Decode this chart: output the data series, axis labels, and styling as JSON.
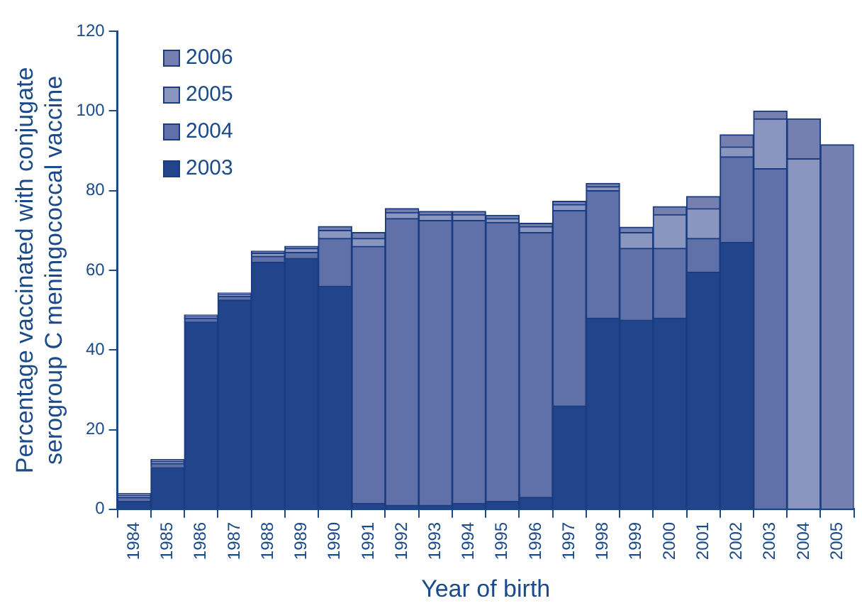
{
  "chart_data": {
    "type": "bar",
    "stacked": true,
    "xlabel": "Year of birth",
    "ylabel": "Percentage vaccinated with conjugate serogroup C meningococcal vaccine",
    "categories": [
      "1984",
      "1985",
      "1986",
      "1987",
      "1988",
      "1989",
      "1990",
      "1991",
      "1992",
      "1993",
      "1994",
      "1995",
      "1996",
      "1997",
      "1998",
      "1999",
      "2000",
      "2001",
      "2002",
      "2003",
      "2004",
      "2005"
    ],
    "series": [
      {
        "name": "2003",
        "color": "#22448a",
        "values": [
          2,
          10.5,
          47,
          52.5,
          62,
          63,
          56,
          1.5,
          1,
          1,
          1.5,
          2,
          3,
          26,
          48,
          47.5,
          48,
          59.5,
          67,
          null,
          null,
          null
        ]
      },
      {
        "name": "2004",
        "color": "#6070a8",
        "values": [
          1,
          1,
          1,
          1,
          1.5,
          1.5,
          12,
          64.5,
          72,
          71.5,
          71,
          70,
          66.5,
          49,
          32,
          18,
          17.5,
          8.5,
          21.5,
          85.5,
          null,
          null
        ]
      },
      {
        "name": "2005",
        "color": "#8a96c0",
        "values": [
          0.5,
          0.5,
          0.3,
          0.5,
          0.8,
          1,
          2,
          2,
          1.5,
          1.5,
          1.5,
          1,
          1.5,
          1.5,
          1,
          4,
          8.5,
          7.5,
          2.5,
          12.5,
          88,
          null
        ]
      },
      {
        "name": "2006",
        "color": "#7680b0",
        "values": [
          0.5,
          0.5,
          0.5,
          0.3,
          0.5,
          0.5,
          1,
          1.5,
          1,
          0.8,
          0.8,
          0.8,
          0.8,
          0.8,
          0.8,
          1.3,
          2,
          3,
          3,
          2,
          10,
          91.5
        ]
      }
    ],
    "ylim": [
      0,
      120
    ],
    "yticks": [
      0,
      20,
      40,
      60,
      80,
      100,
      120
    ],
    "grid": false,
    "legend": "top left"
  }
}
